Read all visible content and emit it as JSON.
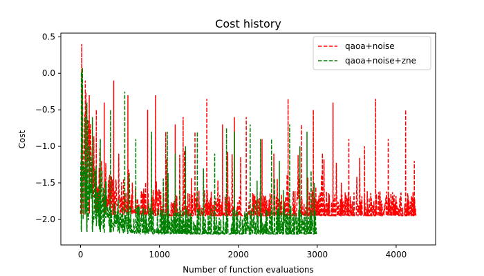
{
  "chart_data": {
    "type": "line",
    "title": "Cost history",
    "xlabel": "Number of function evaluations",
    "ylabel": "Cost",
    "xlim": [
      -250,
      4500
    ],
    "ylim": [
      -2.35,
      0.55
    ],
    "xticks": [
      0,
      1000,
      2000,
      3000,
      4000
    ],
    "yticks": [
      0.5,
      0.0,
      -0.5,
      -1.0,
      -1.5,
      -2.0
    ],
    "xtick_labels": [
      "0",
      "1000",
      "2000",
      "3000",
      "4000"
    ],
    "ytick_labels": [
      "0.5",
      "0.0",
      "−0.5",
      "−1.0",
      "−1.5",
      "−2.0"
    ],
    "grid": false,
    "legend_position": "top-right",
    "series": [
      {
        "name": "qaoa+noise",
        "color": "#ff0000",
        "dash": "dashed",
        "x_max": 4250,
        "floor": -1.95,
        "start": 0.4,
        "spikes": [
          [
            15,
            0.4
          ],
          [
            60,
            -0.1
          ],
          [
            110,
            -0.3
          ],
          [
            200,
            -0.5
          ],
          [
            300,
            -0.4
          ],
          [
            420,
            -0.1
          ],
          [
            600,
            -0.3
          ],
          [
            850,
            -0.5
          ],
          [
            950,
            -0.3
          ],
          [
            1080,
            -0.8
          ],
          [
            1200,
            -0.7
          ],
          [
            1300,
            -0.6
          ],
          [
            1450,
            -0.8
          ],
          [
            1600,
            -0.35
          ],
          [
            1800,
            -0.7
          ],
          [
            1950,
            -0.6
          ],
          [
            2100,
            -0.6
          ],
          [
            2300,
            -0.9
          ],
          [
            2450,
            -1.1
          ],
          [
            2630,
            -0.35
          ],
          [
            2800,
            -0.7
          ],
          [
            2950,
            -0.5
          ],
          [
            3200,
            -0.4
          ],
          [
            3400,
            -0.9
          ],
          [
            3600,
            -1.0
          ],
          [
            3740,
            -0.35
          ],
          [
            3900,
            -0.9
          ],
          [
            4120,
            -0.5
          ],
          [
            4230,
            -1.2
          ]
        ]
      },
      {
        "name": "qaoa+noise+zne",
        "color": "#008000",
        "dash": "dashed",
        "x_max": 2990,
        "floor": -2.2,
        "start": 0.0,
        "spikes": [
          [
            10,
            0.02
          ],
          [
            80,
            -0.4
          ],
          [
            150,
            -0.6
          ],
          [
            250,
            -0.9
          ],
          [
            380,
            -0.5
          ],
          [
            560,
            -0.25
          ],
          [
            700,
            -0.9
          ],
          [
            900,
            -0.8
          ],
          [
            1100,
            -0.8
          ],
          [
            1200,
            -1.1
          ],
          [
            1330,
            -1.0
          ],
          [
            1480,
            -0.8
          ],
          [
            1700,
            -1.1
          ],
          [
            1850,
            -0.75
          ],
          [
            1950,
            -0.8
          ],
          [
            2150,
            -0.7
          ],
          [
            2280,
            -0.9
          ],
          [
            2420,
            -0.9
          ],
          [
            2520,
            -1.2
          ],
          [
            2650,
            -0.7
          ],
          [
            2780,
            -1.0
          ],
          [
            2870,
            -0.8
          ],
          [
            2960,
            -1.5
          ]
        ]
      }
    ]
  }
}
